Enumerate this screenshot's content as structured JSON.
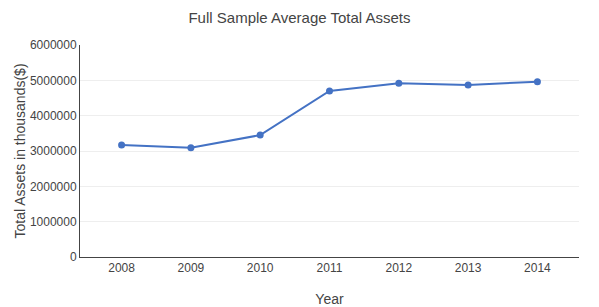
{
  "chart_data": {
    "type": "line",
    "title": "Full Sample Average Total Assets",
    "xlabel": "Year",
    "ylabel": "Total Assets in thousands($)",
    "x": [
      2008,
      2009,
      2010,
      2011,
      2012,
      2013,
      2014
    ],
    "values": [
      3170000,
      3090000,
      3450000,
      4700000,
      4920000,
      4870000,
      4960000
    ],
    "color": "#4472C4",
    "marker": "circle",
    "xlim": [
      2007.4,
      2014.6
    ],
    "xticks": [
      2008,
      2009,
      2010,
      2011,
      2012,
      2013,
      2014
    ],
    "ylim": [
      0,
      6000000
    ],
    "yticks": [
      0,
      1000000,
      2000000,
      3000000,
      4000000,
      5000000,
      6000000
    ],
    "grid": "y"
  }
}
